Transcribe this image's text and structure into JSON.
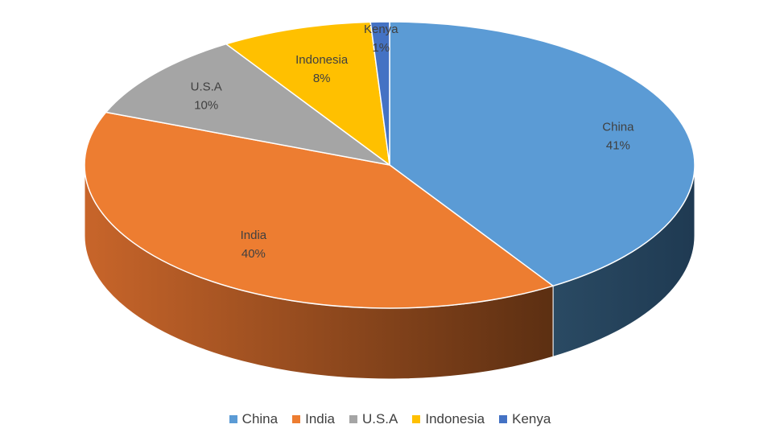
{
  "chart_data": {
    "type": "pie",
    "style": "3d",
    "title": "",
    "categories": [
      "China",
      "India",
      "U.S.A",
      "Indonesia",
      "Kenya"
    ],
    "values": [
      41,
      40,
      10,
      8,
      1
    ],
    "labels": [
      "41%",
      "40%",
      "10%",
      "8%",
      "1%"
    ],
    "colors": [
      "#5b9bd5",
      "#ed7d31",
      "#a5a5a5",
      "#ffc000",
      "#4472c4"
    ],
    "legend_position": "bottom"
  }
}
